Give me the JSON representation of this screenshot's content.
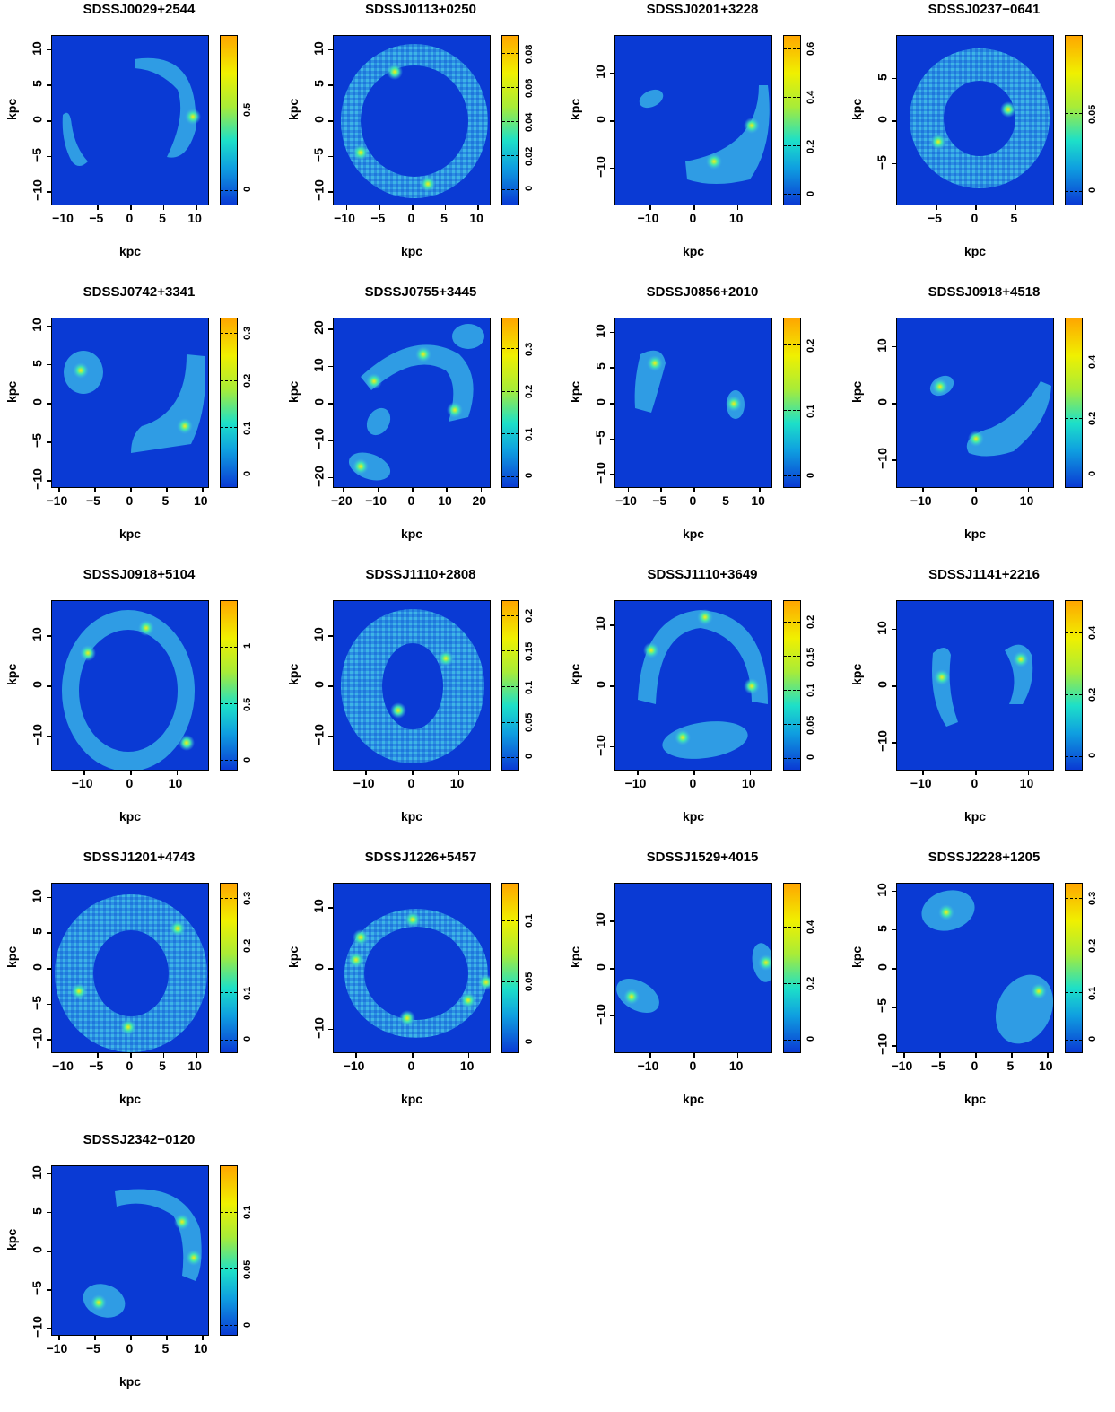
{
  "colorscale": {
    "low": "#0a3ad4",
    "mid": "#1de0c8",
    "high": "#ffa600"
  },
  "chart_data": [
    {
      "type": "heatmap",
      "title": "SDSSJ0029+2544",
      "xlabel": "kpc",
      "ylabel": "kpc",
      "xlim": [
        -12,
        12
      ],
      "ylim": [
        -12,
        12
      ],
      "xticks": [
        "−10",
        "−5",
        "0",
        "5",
        "10"
      ],
      "yticks": [
        "−10",
        "−5",
        "0",
        "5",
        "10"
      ],
      "colorbar_ticks": [
        "0",
        "0.5"
      ],
      "colorbar_range": [
        -0.1,
        0.95
      ]
    },
    {
      "type": "heatmap",
      "title": "SDSSJ0113+0250",
      "xlabel": "kpc",
      "ylabel": "kpc",
      "xlim": [
        -12,
        12
      ],
      "ylim": [
        -12,
        12
      ],
      "xticks": [
        "−10",
        "−5",
        "0",
        "5",
        "10"
      ],
      "yticks": [
        "−10",
        "−5",
        "0",
        "5",
        "10"
      ],
      "colorbar_ticks": [
        "0",
        "0.02",
        "0.04",
        "0.06",
        "0.08"
      ],
      "colorbar_range": [
        -0.01,
        0.09
      ]
    },
    {
      "type": "heatmap",
      "title": "SDSSJ0201+3228",
      "xlabel": "kpc",
      "ylabel": "kpc",
      "xlim": [
        -18,
        18
      ],
      "ylim": [
        -18,
        18
      ],
      "xticks": [
        "−10",
        "0",
        "10"
      ],
      "yticks": [
        "−10",
        "0",
        "10"
      ],
      "colorbar_ticks": [
        "0",
        "0.2",
        "0.4",
        "0.6"
      ],
      "colorbar_range": [
        -0.05,
        0.65
      ]
    },
    {
      "type": "heatmap",
      "title": "SDSSJ0237−0641",
      "xlabel": "kpc",
      "ylabel": "kpc",
      "xlim": [
        -10,
        10
      ],
      "ylim": [
        -10,
        10
      ],
      "xticks": [
        "−5",
        "0",
        "5"
      ],
      "yticks": [
        "−5",
        "0",
        "5"
      ],
      "colorbar_ticks": [
        "0",
        "0.05"
      ],
      "colorbar_range": [
        -0.01,
        0.1
      ]
    },
    {
      "type": "heatmap",
      "title": "SDSSJ0742+3341",
      "xlabel": "kpc",
      "ylabel": "kpc",
      "xlim": [
        -11,
        11
      ],
      "ylim": [
        -11,
        11
      ],
      "xticks": [
        "−10",
        "−5",
        "0",
        "5",
        "10"
      ],
      "yticks": [
        "−10",
        "−5",
        "0",
        "5",
        "10"
      ],
      "colorbar_ticks": [
        "0",
        "0.1",
        "0.2",
        "0.3"
      ],
      "colorbar_range": [
        -0.03,
        0.33
      ]
    },
    {
      "type": "heatmap",
      "title": "SDSSJ0755+3445",
      "xlabel": "kpc",
      "ylabel": "kpc",
      "xlim": [
        -23,
        23
      ],
      "ylim": [
        -23,
        23
      ],
      "xticks": [
        "−20",
        "−10",
        "0",
        "10",
        "20"
      ],
      "yticks": [
        "−20",
        "−10",
        "0",
        "10",
        "20"
      ],
      "colorbar_ticks": [
        "0",
        "0.1",
        "0.2",
        "0.3"
      ],
      "colorbar_range": [
        -0.03,
        0.37
      ]
    },
    {
      "type": "heatmap",
      "title": "SDSSJ0856+2010",
      "xlabel": "kpc",
      "ylabel": "kpc",
      "xlim": [
        -12,
        12
      ],
      "ylim": [
        -12,
        12
      ],
      "xticks": [
        "−10",
        "−5",
        "0",
        "5",
        "10"
      ],
      "yticks": [
        "−10",
        "−5",
        "0",
        "5",
        "10"
      ],
      "colorbar_ticks": [
        "0",
        "0.1",
        "0.2"
      ],
      "colorbar_range": [
        -0.02,
        0.24
      ]
    },
    {
      "type": "heatmap",
      "title": "SDSSJ0918+4518",
      "xlabel": "kpc",
      "ylabel": "kpc",
      "xlim": [
        -15,
        15
      ],
      "ylim": [
        -15,
        15
      ],
      "xticks": [
        "−10",
        "0",
        "10"
      ],
      "yticks": [
        "−10",
        "0",
        "10"
      ],
      "colorbar_ticks": [
        "0",
        "0.2",
        "0.4"
      ],
      "colorbar_range": [
        -0.05,
        0.55
      ]
    },
    {
      "type": "heatmap",
      "title": "SDSSJ0918+5104",
      "xlabel": "kpc",
      "ylabel": "kpc",
      "xlim": [
        -17,
        17
      ],
      "ylim": [
        -17,
        17
      ],
      "xticks": [
        "−10",
        "0",
        "10"
      ],
      "yticks": [
        "−10",
        "0",
        "10"
      ],
      "colorbar_ticks": [
        "0",
        "0.5",
        "1"
      ],
      "colorbar_range": [
        -0.1,
        1.4
      ]
    },
    {
      "type": "heatmap",
      "title": "SDSSJ1110+2808",
      "xlabel": "kpc",
      "ylabel": "kpc",
      "xlim": [
        -17,
        17
      ],
      "ylim": [
        -17,
        17
      ],
      "xticks": [
        "−10",
        "0",
        "10"
      ],
      "yticks": [
        "−10",
        "0",
        "10"
      ],
      "colorbar_ticks": [
        "0",
        "0.05",
        "0.1",
        "0.15",
        "0.2"
      ],
      "colorbar_range": [
        -0.02,
        0.22
      ]
    },
    {
      "type": "heatmap",
      "title": "SDSSJ1110+3649",
      "xlabel": "kpc",
      "ylabel": "kpc",
      "xlim": [
        -14,
        14
      ],
      "ylim": [
        -14,
        14
      ],
      "xticks": [
        "−10",
        "0",
        "10"
      ],
      "yticks": [
        "−10",
        "0",
        "10"
      ],
      "colorbar_ticks": [
        "0",
        "0.05",
        "0.1",
        "0.15",
        "0.2"
      ],
      "colorbar_range": [
        -0.02,
        0.23
      ]
    },
    {
      "type": "heatmap",
      "title": "SDSSJ1141+2216",
      "xlabel": "kpc",
      "ylabel": "kpc",
      "xlim": [
        -15,
        15
      ],
      "ylim": [
        -15,
        15
      ],
      "xticks": [
        "−10",
        "0",
        "10"
      ],
      "yticks": [
        "−10",
        "0",
        "10"
      ],
      "colorbar_ticks": [
        "0",
        "0.2",
        "0.4"
      ],
      "colorbar_range": [
        -0.05,
        0.5
      ]
    },
    {
      "type": "heatmap",
      "title": "SDSSJ1201+4743",
      "xlabel": "kpc",
      "ylabel": "kpc",
      "xlim": [
        -12,
        12
      ],
      "ylim": [
        -12,
        12
      ],
      "xticks": [
        "−10",
        "−5",
        "0",
        "5",
        "10"
      ],
      "yticks": [
        "−10",
        "−5",
        "0",
        "5",
        "10"
      ],
      "colorbar_ticks": [
        "0",
        "0.1",
        "0.2",
        "0.3"
      ],
      "colorbar_range": [
        -0.03,
        0.33
      ]
    },
    {
      "type": "heatmap",
      "title": "SDSSJ1226+5457",
      "xlabel": "kpc",
      "ylabel": "kpc",
      "xlim": [
        -14,
        14
      ],
      "ylim": [
        -14,
        14
      ],
      "xticks": [
        "−10",
        "0",
        "10"
      ],
      "yticks": [
        "−10",
        "0",
        "10"
      ],
      "colorbar_ticks": [
        "0",
        "0.05",
        "0.1"
      ],
      "colorbar_range": [
        -0.01,
        0.13
      ]
    },
    {
      "type": "heatmap",
      "title": "SDSSJ1529+4015",
      "xlabel": "kpc",
      "ylabel": "kpc",
      "xlim": [
        -18,
        18
      ],
      "ylim": [
        -18,
        18
      ],
      "xticks": [
        "−10",
        "0",
        "10"
      ],
      "yticks": [
        "−10",
        "0",
        "10"
      ],
      "colorbar_ticks": [
        "0",
        "0.2",
        "0.4"
      ],
      "colorbar_range": [
        -0.05,
        0.55
      ]
    },
    {
      "type": "heatmap",
      "title": "SDSSJ2228+1205",
      "xlabel": "kpc",
      "ylabel": "kpc",
      "xlim": [
        -11,
        11
      ],
      "ylim": [
        -11,
        11
      ],
      "xticks": [
        "−10",
        "−5",
        "0",
        "5",
        "10"
      ],
      "yticks": [
        "−10",
        "−5",
        "0",
        "5",
        "10"
      ],
      "colorbar_ticks": [
        "0",
        "0.1",
        "0.2",
        "0.3"
      ],
      "colorbar_range": [
        -0.03,
        0.33
      ]
    },
    {
      "type": "heatmap",
      "title": "SDSSJ2342−0120",
      "xlabel": "kpc",
      "ylabel": "kpc",
      "xlim": [
        -11,
        11
      ],
      "ylim": [
        -11,
        11
      ],
      "xticks": [
        "−10",
        "−5",
        "0",
        "5",
        "10"
      ],
      "yticks": [
        "−10",
        "−5",
        "0",
        "5",
        "10"
      ],
      "colorbar_ticks": [
        "0",
        "0.05",
        "0.1"
      ],
      "colorbar_range": [
        -0.01,
        0.14
      ]
    }
  ]
}
